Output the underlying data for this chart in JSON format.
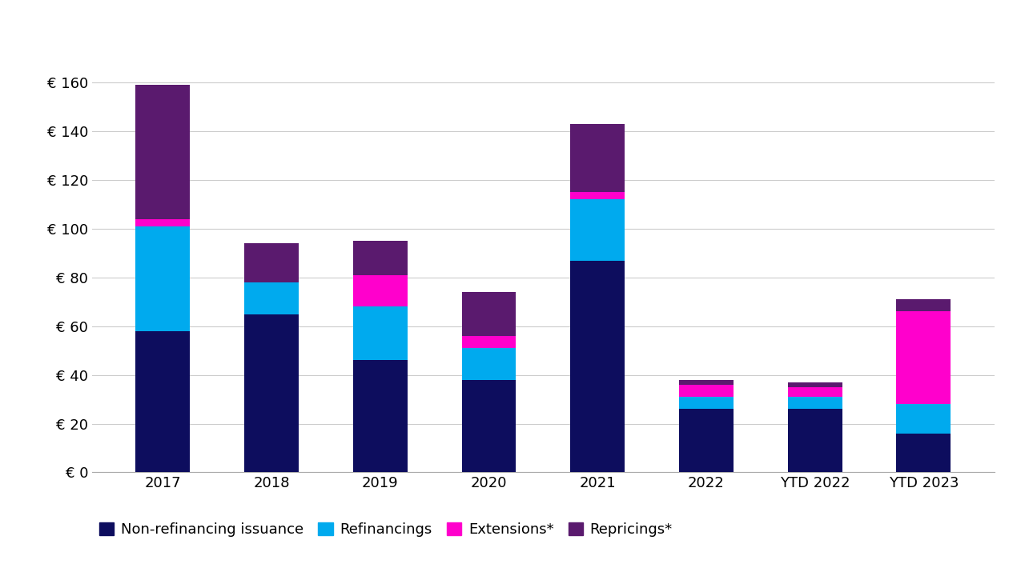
{
  "categories": [
    "2017",
    "2018",
    "2019",
    "2020",
    "2021",
    "2022",
    "YTD 2022",
    "YTD 2023"
  ],
  "non_refinancing": [
    58,
    65,
    46,
    38,
    87,
    26,
    26,
    16
  ],
  "refinancings": [
    43,
    13,
    22,
    13,
    25,
    5,
    5,
    12
  ],
  "extensions": [
    3,
    0,
    13,
    5,
    3,
    5,
    4,
    38
  ],
  "repricings": [
    55,
    16,
    14,
    18,
    28,
    2,
    2,
    5
  ],
  "colors": {
    "non_refinancing": "#0d0d5e",
    "refinancings": "#00aaee",
    "extensions": "#ff00cc",
    "repricings": "#5a1a6e"
  },
  "legend_labels": [
    "Non-refinancing issuance",
    "Refinancings",
    "Extensions*",
    "Repricings*"
  ],
  "ylim": [
    0,
    175
  ],
  "yticks": [
    0,
    20,
    40,
    60,
    80,
    100,
    120,
    140,
    160
  ],
  "ytick_labels": [
    "€ 0",
    "€ 20",
    "€ 40",
    "€ 60",
    "€ 80",
    "€ 100",
    "€ 120",
    "€ 140",
    "€ 160"
  ],
  "background_color": "#ffffff",
  "grid_color": "#cccccc",
  "bar_width": 0.5
}
